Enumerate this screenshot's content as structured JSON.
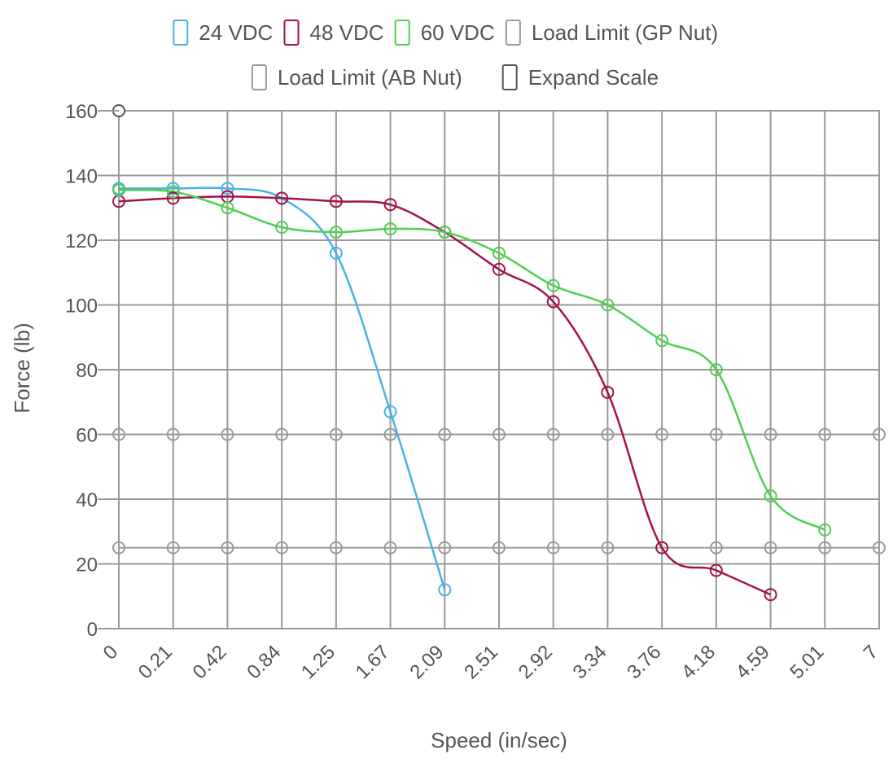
{
  "chart_data": {
    "type": "line",
    "xlabel": "Speed (in/sec)",
    "ylabel": "Force (lb)",
    "categories": [
      "0",
      "0.21",
      "0.42",
      "0.84",
      "1.25",
      "1.67",
      "2.09",
      "2.51",
      "2.92",
      "3.34",
      "3.76",
      "4.18",
      "4.59",
      "5.01",
      "7"
    ],
    "ylim": [
      0,
      160
    ],
    "yticks": [
      0,
      20,
      40,
      60,
      80,
      100,
      120,
      140,
      160
    ],
    "grid": true,
    "legend_position": "top",
    "legend": [
      {
        "label": "24 VDC",
        "color": "#4ab3e2",
        "checked": true
      },
      {
        "label": "48 VDC",
        "color": "#a3124a",
        "checked": true
      },
      {
        "label": "60 VDC",
        "color": "#4fcf4f",
        "checked": true
      },
      {
        "label": "Load Limit (GP Nut)",
        "color": "#9a9a9a",
        "checked": false
      },
      {
        "label": "Load Limit (AB Nut)",
        "color": "#9a9a9a",
        "checked": false
      },
      {
        "label": "Expand Scale",
        "color": "#555555",
        "checked": false
      }
    ],
    "series": [
      {
        "name": "24 VDC",
        "color": "#4ab3e2",
        "values": [
          136,
          136,
          136,
          133,
          116,
          67,
          12,
          null,
          null,
          null,
          null,
          null,
          null,
          null,
          null
        ]
      },
      {
        "name": "48 VDC",
        "color": "#a3124a",
        "values": [
          132,
          133,
          133.5,
          133,
          132,
          131,
          122.5,
          111,
          101,
          73,
          25,
          18,
          10.5,
          null,
          null
        ]
      },
      {
        "name": "60 VDC",
        "color": "#4fcf4f",
        "values": [
          135.5,
          135,
          130,
          124,
          122.5,
          123.5,
          122.5,
          116,
          106,
          100,
          89,
          80,
          41,
          30.5,
          null
        ]
      },
      {
        "name": "Load Limit (GP Nut)",
        "color": "#9a9a9a",
        "values": [
          60,
          60,
          60,
          60,
          60,
          60,
          60,
          60,
          60,
          60,
          60,
          60,
          60,
          60,
          60
        ]
      },
      {
        "name": "Load Limit (AB Nut)",
        "color": "#9a9a9a",
        "values": [
          25,
          25,
          25,
          25,
          25,
          25,
          25,
          25,
          25,
          25,
          25,
          25,
          25,
          25,
          25
        ]
      }
    ],
    "extra_points": [
      {
        "series": "Expand Scale",
        "category_index": 0,
        "value": 160,
        "color": "#555555"
      }
    ]
  }
}
